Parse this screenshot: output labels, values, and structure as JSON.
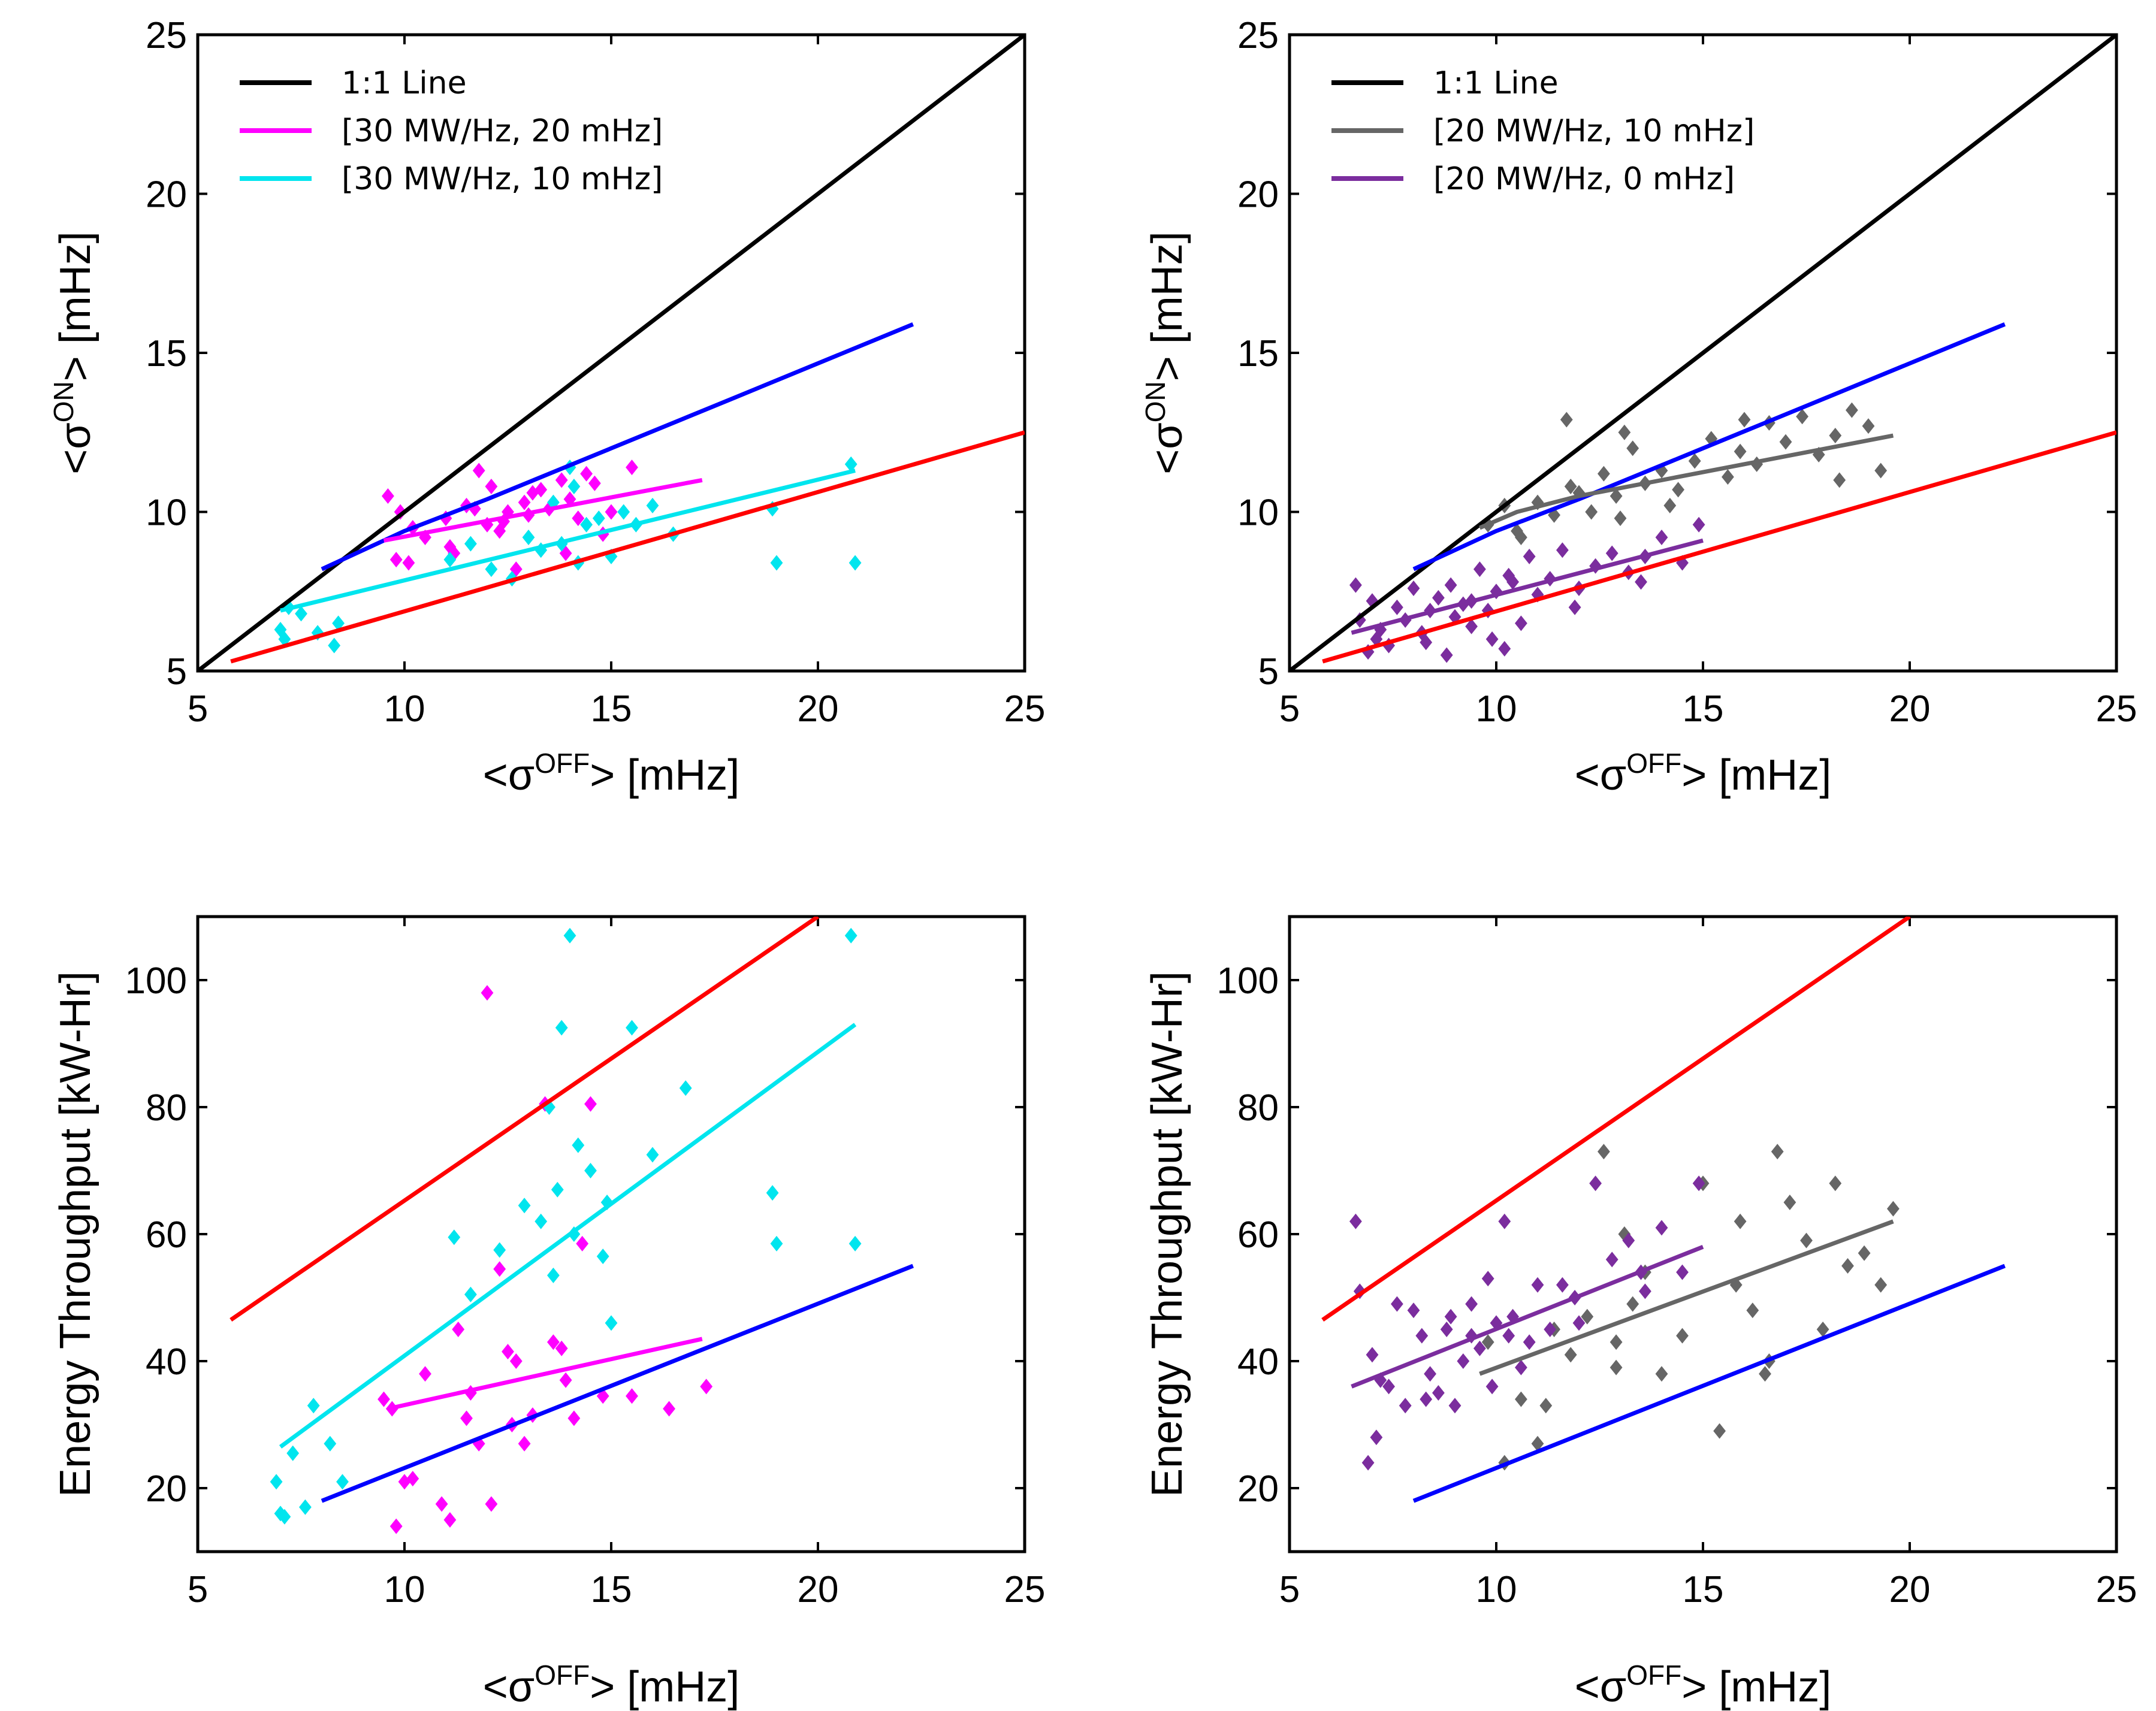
{
  "chart_data": [
    {
      "type": "scatter",
      "xlabel": {
        "prefix": "<σ",
        "sup": "OFF",
        "suffix": "> [mHz]"
      },
      "ylabel": {
        "prefix": "<σ",
        "sup": "ON",
        "suffix": "> [mHz]"
      },
      "xlim": [
        5,
        25
      ],
      "ylim": [
        5,
        25
      ],
      "xticks": [
        "5",
        "10",
        "15",
        "20",
        "25"
      ],
      "yticks": [
        "5",
        "10",
        "15",
        "20",
        "25"
      ],
      "xtick_values": [
        5,
        10,
        15,
        20,
        25
      ],
      "ytick_values": [
        5,
        10,
        15,
        20,
        25
      ],
      "legend_position": "top-left",
      "legend": [
        {
          "label": "1:1 Line",
          "color": "#000000"
        },
        {
          "label": "[30 MW/Hz, 20 mHz]",
          "color": "#ff00ff"
        },
        {
          "label": "[30 MW/Hz, 10 mHz]",
          "color": "#00e5ee"
        }
      ],
      "lines": [
        {
          "name": "1:1 Line",
          "color": "#000000",
          "x": [
            5,
            25
          ],
          "y": [
            5,
            25
          ]
        },
        {
          "name": "blue-bound",
          "color": "#0000ff",
          "x": [
            8,
            9,
            10,
            12,
            15,
            18,
            22.3
          ],
          "y": [
            8.2,
            8.8,
            9.4,
            10.4,
            12.0,
            13.6,
            15.9
          ]
        },
        {
          "name": "red-bound",
          "color": "#ff0000",
          "x": [
            5.8,
            25
          ],
          "y": [
            5.3,
            12.5
          ]
        },
        {
          "name": "[30 MW/Hz, 20 mHz] fit",
          "color": "#ff00ff",
          "x": [
            9.5,
            17.2
          ],
          "y": [
            9.1,
            11.0
          ]
        },
        {
          "name": "[30 MW/Hz, 10 mHz] fit",
          "color": "#00e5ee",
          "x": [
            7,
            20.9
          ],
          "y": [
            6.9,
            11.3
          ]
        }
      ],
      "series": [
        {
          "name": "[30 MW/Hz, 20 mHz]",
          "color": "#ff00ff",
          "x": [
            9.6,
            9.9,
            9.8,
            10.1,
            10.5,
            11.0,
            11.2,
            11.5,
            11.8,
            12.0,
            12.1,
            12.3,
            12.5,
            12.7,
            12.9,
            13.0,
            13.3,
            13.5,
            13.8,
            14.0,
            14.2,
            14.4,
            14.6,
            15.0,
            15.5,
            11.1,
            12.4,
            13.1,
            13.9,
            11.7,
            10.2,
            14.8
          ],
          "y": [
            10.5,
            10.0,
            8.5,
            8.4,
            9.2,
            9.8,
            8.7,
            10.2,
            11.3,
            9.6,
            10.8,
            9.4,
            10.0,
            8.2,
            10.3,
            9.9,
            10.7,
            10.1,
            11.0,
            10.4,
            9.8,
            11.2,
            10.9,
            10.0,
            11.4,
            8.9,
            9.7,
            10.6,
            8.7,
            10.1,
            9.5,
            9.3
          ]
        },
        {
          "name": "[30 MW/Hz, 10 mHz]",
          "color": "#00e5ee",
          "x": [
            7.0,
            7.1,
            7.2,
            7.5,
            7.9,
            8.3,
            8.4,
            11.1,
            11.6,
            12.1,
            12.6,
            13.0,
            13.3,
            13.6,
            13.8,
            14.0,
            14.2,
            14.4,
            14.7,
            15.0,
            15.3,
            15.6,
            16.0,
            16.5,
            18.9,
            19.0,
            20.8,
            20.9,
            14.1
          ],
          "y": [
            6.3,
            6.0,
            7.0,
            6.8,
            6.2,
            5.8,
            6.5,
            8.5,
            9.0,
            8.2,
            7.9,
            9.2,
            8.8,
            10.3,
            9.0,
            11.4,
            8.4,
            9.6,
            9.8,
            8.6,
            10.0,
            9.6,
            10.2,
            9.3,
            10.1,
            8.4,
            11.5,
            8.4,
            10.8
          ]
        }
      ]
    },
    {
      "type": "scatter",
      "xlabel": {
        "prefix": "<σ",
        "sup": "OFF",
        "suffix": "> [mHz]"
      },
      "ylabel": {
        "prefix": "<σ",
        "sup": "ON",
        "suffix": "> [mHz]"
      },
      "xlim": [
        5,
        25
      ],
      "ylim": [
        5,
        25
      ],
      "xticks": [
        "5",
        "10",
        "15",
        "20",
        "25"
      ],
      "yticks": [
        "5",
        "10",
        "15",
        "20",
        "25"
      ],
      "xtick_values": [
        5,
        10,
        15,
        20,
        25
      ],
      "ytick_values": [
        5,
        10,
        15,
        20,
        25
      ],
      "legend_position": "top-left",
      "legend": [
        {
          "label": "1:1 Line",
          "color": "#000000"
        },
        {
          "label": "[20 MW/Hz, 10 mHz]",
          "color": "#666666"
        },
        {
          "label": "[20 MW/Hz, 0 mHz]",
          "color": "#7b2d9e"
        }
      ],
      "lines": [
        {
          "name": "1:1 Line",
          "color": "#000000",
          "x": [
            5,
            25
          ],
          "y": [
            5,
            25
          ]
        },
        {
          "name": "blue-bound",
          "color": "#0000ff",
          "x": [
            8,
            9,
            10,
            12,
            15,
            18,
            22.3
          ],
          "y": [
            8.2,
            8.8,
            9.4,
            10.4,
            12.0,
            13.6,
            15.9
          ]
        },
        {
          "name": "red-bound",
          "color": "#ff0000",
          "x": [
            5.8,
            25
          ],
          "y": [
            5.3,
            12.5
          ]
        },
        {
          "name": "[20 MW/Hz, 10 mHz] fit",
          "color": "#666666",
          "x": [
            9.6,
            10.5,
            12,
            14,
            16,
            18,
            19.6
          ],
          "y": [
            9.5,
            10.0,
            10.5,
            11.0,
            11.5,
            12.0,
            12.4
          ]
        },
        {
          "name": "[20 MW/Hz, 0 mHz] fit",
          "color": "#7b2d9e",
          "x": [
            6.5,
            15
          ],
          "y": [
            6.2,
            9.1
          ]
        }
      ],
      "series": [
        {
          "name": "[20 MW/Hz, 10 mHz]",
          "color": "#666666",
          "x": [
            9.8,
            10.2,
            10.6,
            11.0,
            11.4,
            11.7,
            12.0,
            12.3,
            12.6,
            12.9,
            13.1,
            13.3,
            13.6,
            14.0,
            14.4,
            14.8,
            15.2,
            15.6,
            16.0,
            16.3,
            16.6,
            17.0,
            17.4,
            17.8,
            18.2,
            18.6,
            19.0,
            19.3,
            11.8,
            13.0,
            14.2,
            15.9,
            18.3,
            10.5
          ],
          "y": [
            9.6,
            10.2,
            9.2,
            10.3,
            9.9,
            12.9,
            10.6,
            10.0,
            11.2,
            10.5,
            12.5,
            12.0,
            10.9,
            11.3,
            10.7,
            11.6,
            12.3,
            11.1,
            12.9,
            11.5,
            12.8,
            12.2,
            13.0,
            11.8,
            12.4,
            13.2,
            12.7,
            11.3,
            10.8,
            9.8,
            10.2,
            11.9,
            11.0,
            9.4
          ]
        },
        {
          "name": "[20 MW/Hz, 0 mHz]",
          "color": "#7b2d9e",
          "x": [
            6.6,
            6.7,
            6.9,
            7.0,
            7.2,
            7.4,
            7.6,
            7.8,
            8.0,
            8.2,
            8.4,
            8.6,
            8.8,
            9.0,
            9.2,
            9.4,
            9.6,
            9.8,
            10.0,
            10.2,
            10.4,
            10.6,
            10.8,
            11.0,
            11.3,
            11.6,
            12.0,
            12.4,
            12.8,
            13.2,
            13.6,
            14.0,
            14.5,
            14.9,
            7.1,
            8.9,
            9.9,
            10.3,
            11.9,
            13.5,
            8.3,
            9.4
          ],
          "y": [
            7.7,
            6.6,
            5.6,
            7.2,
            6.3,
            5.8,
            7.0,
            6.6,
            7.6,
            6.2,
            6.9,
            7.3,
            5.5,
            6.7,
            7.1,
            6.4,
            8.2,
            6.9,
            7.5,
            5.7,
            7.8,
            6.5,
            8.6,
            7.4,
            7.9,
            8.8,
            7.6,
            8.3,
            8.7,
            8.1,
            8.6,
            9.2,
            8.4,
            9.6,
            6.0,
            7.7,
            6.0,
            8.0,
            7.0,
            7.8,
            5.9,
            7.2
          ]
        }
      ]
    },
    {
      "type": "scatter",
      "xlabel": {
        "prefix": "<σ",
        "sup": "OFF",
        "suffix": "> [mHz]"
      },
      "ylabel": {
        "prefix": "Energy Throughput [kW-Hr]",
        "sup": "",
        "suffix": ""
      },
      "xlim": [
        5,
        25
      ],
      "ylim": [
        10,
        110
      ],
      "xticks": [
        "5",
        "10",
        "15",
        "20",
        "25"
      ],
      "yticks": [
        "20",
        "40",
        "60",
        "80",
        "100"
      ],
      "xtick_values": [
        5,
        10,
        15,
        20,
        25
      ],
      "ytick_values": [
        20,
        40,
        60,
        80,
        100
      ],
      "legend": [],
      "lines": [
        {
          "name": "red-bound",
          "color": "#ff0000",
          "x": [
            5.8,
            20
          ],
          "y": [
            46.5,
            110
          ]
        },
        {
          "name": "blue-bound",
          "color": "#0000ff",
          "x": [
            8,
            22.3
          ],
          "y": [
            18,
            55
          ]
        },
        {
          "name": "[30 MW/Hz, 10 mHz] fit",
          "color": "#00e5ee",
          "x": [
            7,
            20.9
          ],
          "y": [
            26.5,
            93
          ]
        },
        {
          "name": "[30 MW/Hz, 20 mHz] fit",
          "color": "#ff00ff",
          "x": [
            9.6,
            17.2
          ],
          "y": [
            32.5,
            43.5
          ]
        }
      ],
      "series": [
        {
          "name": "[30 MW/Hz, 20 mHz]",
          "color": "#ff00ff",
          "x": [
            9.5,
            9.7,
            9.8,
            10.0,
            10.2,
            10.5,
            10.9,
            11.1,
            11.3,
            11.5,
            11.8,
            12.0,
            12.1,
            12.3,
            12.5,
            12.7,
            12.9,
            13.1,
            13.4,
            13.6,
            13.9,
            14.1,
            14.3,
            14.5,
            14.8,
            15.5,
            16.4,
            17.3,
            11.6,
            12.6,
            13.8
          ],
          "y": [
            34,
            32.5,
            14,
            21,
            21.5,
            38,
            17.5,
            15,
            45,
            31,
            27,
            98,
            17.5,
            54.5,
            41.5,
            40,
            27,
            31.5,
            80.5,
            43,
            37,
            31,
            58.5,
            80.5,
            34.5,
            34.5,
            32.5,
            36,
            35,
            30,
            42
          ]
        },
        {
          "name": "[30 MW/Hz, 10 mHz]",
          "color": "#00e5ee",
          "x": [
            6.9,
            7.0,
            7.1,
            7.3,
            7.6,
            7.8,
            8.2,
            8.5,
            11.2,
            11.6,
            12.3,
            12.9,
            13.3,
            13.5,
            13.7,
            13.8,
            14.0,
            14.2,
            14.5,
            14.8,
            15.0,
            15.5,
            16.0,
            16.8,
            18.9,
            19.0,
            20.8,
            20.9,
            14.1,
            13.6,
            14.9
          ],
          "y": [
            21,
            16,
            15.5,
            25.5,
            17,
            33,
            27,
            21,
            59.5,
            50.5,
            57.5,
            64.5,
            62,
            80,
            67,
            92.5,
            107,
            74,
            70,
            56.5,
            46,
            92.5,
            72.5,
            83,
            66.5,
            58.5,
            107,
            58.5,
            60,
            53.5,
            65
          ]
        }
      ]
    },
    {
      "type": "scatter",
      "xlabel": {
        "prefix": "<σ",
        "sup": "OFF",
        "suffix": "> [mHz]"
      },
      "ylabel": {
        "prefix": "Energy Throughput [kW-Hr]",
        "sup": "",
        "suffix": ""
      },
      "xlim": [
        5,
        25
      ],
      "ylim": [
        10,
        110
      ],
      "xticks": [
        "5",
        "10",
        "15",
        "20",
        "25"
      ],
      "yticks": [
        "20",
        "40",
        "60",
        "80",
        "100"
      ],
      "xtick_values": [
        5,
        10,
        15,
        20,
        25
      ],
      "ytick_values": [
        20,
        40,
        60,
        80,
        100
      ],
      "legend": [],
      "lines": [
        {
          "name": "red-bound",
          "color": "#ff0000",
          "x": [
            5.8,
            20
          ],
          "y": [
            46.5,
            110
          ]
        },
        {
          "name": "blue-bound",
          "color": "#0000ff",
          "x": [
            8,
            22.3
          ],
          "y": [
            18,
            55
          ]
        },
        {
          "name": "[20 MW/Hz, 0 mHz] fit",
          "color": "#7b2d9e",
          "x": [
            6.5,
            15
          ],
          "y": [
            36,
            58
          ]
        },
        {
          "name": "[20 MW/Hz, 10 mHz] fit",
          "color": "#666666",
          "x": [
            9.6,
            19.6
          ],
          "y": [
            38,
            62
          ]
        }
      ],
      "series": [
        {
          "name": "[20 MW/Hz, 10 mHz]",
          "color": "#666666",
          "x": [
            9.8,
            10.2,
            10.6,
            11.0,
            11.4,
            11.8,
            12.2,
            12.6,
            12.9,
            13.1,
            13.3,
            13.6,
            14.0,
            14.5,
            15.0,
            15.4,
            15.8,
            16.2,
            16.5,
            16.8,
            17.1,
            17.5,
            17.9,
            18.2,
            18.5,
            18.9,
            19.3,
            19.6,
            11.2,
            12.9,
            15.9,
            16.6
          ],
          "y": [
            43,
            24,
            34,
            27,
            45,
            41,
            47,
            73,
            39,
            60,
            49,
            54,
            38,
            44,
            68,
            29,
            52,
            48,
            38,
            73,
            65,
            59,
            45,
            68,
            55,
            57,
            52,
            64,
            33,
            43,
            62,
            40
          ]
        },
        {
          "name": "[20 MW/Hz, 0 mHz]",
          "color": "#7b2d9e",
          "x": [
            6.6,
            6.7,
            6.9,
            7.0,
            7.2,
            7.4,
            7.6,
            7.8,
            8.0,
            8.2,
            8.4,
            8.6,
            8.8,
            9.0,
            9.2,
            9.4,
            9.6,
            9.8,
            10.0,
            10.2,
            10.4,
            10.6,
            10.8,
            11.0,
            11.3,
            11.6,
            12.0,
            12.4,
            12.8,
            13.2,
            13.6,
            14.0,
            14.5,
            14.9,
            7.1,
            8.9,
            9.9,
            10.3,
            11.9,
            13.5,
            8.3,
            9.4
          ],
          "y": [
            62,
            51,
            24,
            41,
            37,
            36,
            49,
            33,
            48,
            44,
            38,
            35,
            45,
            33,
            40,
            44,
            42,
            53,
            46,
            62,
            47,
            39,
            43,
            52,
            45,
            52,
            46,
            68,
            56,
            59,
            51,
            61,
            54,
            68,
            28,
            47,
            36,
            44,
            50,
            54,
            34,
            49
          ]
        }
      ]
    }
  ]
}
